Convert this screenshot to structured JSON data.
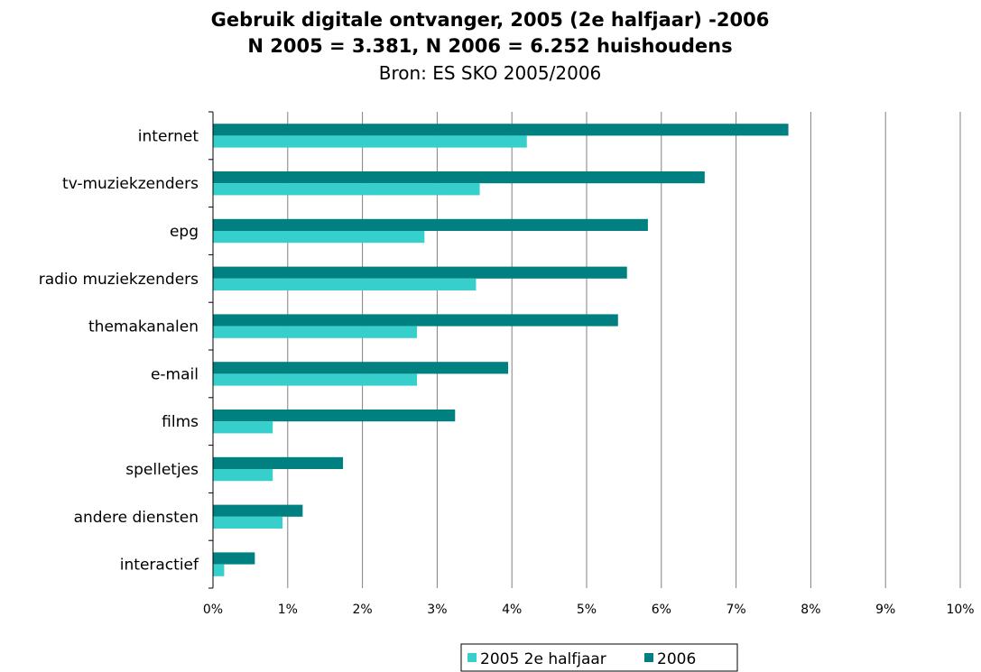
{
  "chart_data": {
    "type": "bar",
    "orientation": "horizontal",
    "title": "Gebruik digitale ontvanger, 2005 (2e halfjaar) -2006",
    "subtitle": "N 2005 = 3.381, N 2006 = 6.252 huishoudens",
    "source": "Bron: ES SKO 2005/2006",
    "xlabel": "",
    "ylabel": "",
    "xlim": [
      0,
      10
    ],
    "x_ticks": [
      "0%",
      "1%",
      "2%",
      "3%",
      "4%",
      "5%",
      "6%",
      "7%",
      "8%",
      "9%",
      "10%"
    ],
    "grid": "vertical",
    "legend": "bottom",
    "categories": [
      "internet",
      "tv-muziekzenders",
      "epg",
      "radio muziekzenders",
      "themakanalen",
      "e-mail",
      "films",
      "spelletjes",
      "andere diensten",
      "interactief"
    ],
    "series": [
      {
        "name": "2005 2e halfjaar",
        "color": "#36CFCB",
        "values": [
          4.2,
          3.57,
          2.83,
          3.52,
          2.73,
          2.73,
          0.8,
          0.8,
          0.93,
          0.15
        ]
      },
      {
        "name": "2006",
        "color": "#008080",
        "values": [
          7.7,
          6.58,
          5.82,
          5.54,
          5.42,
          3.95,
          3.24,
          1.74,
          1.2,
          0.56
        ]
      }
    ]
  }
}
